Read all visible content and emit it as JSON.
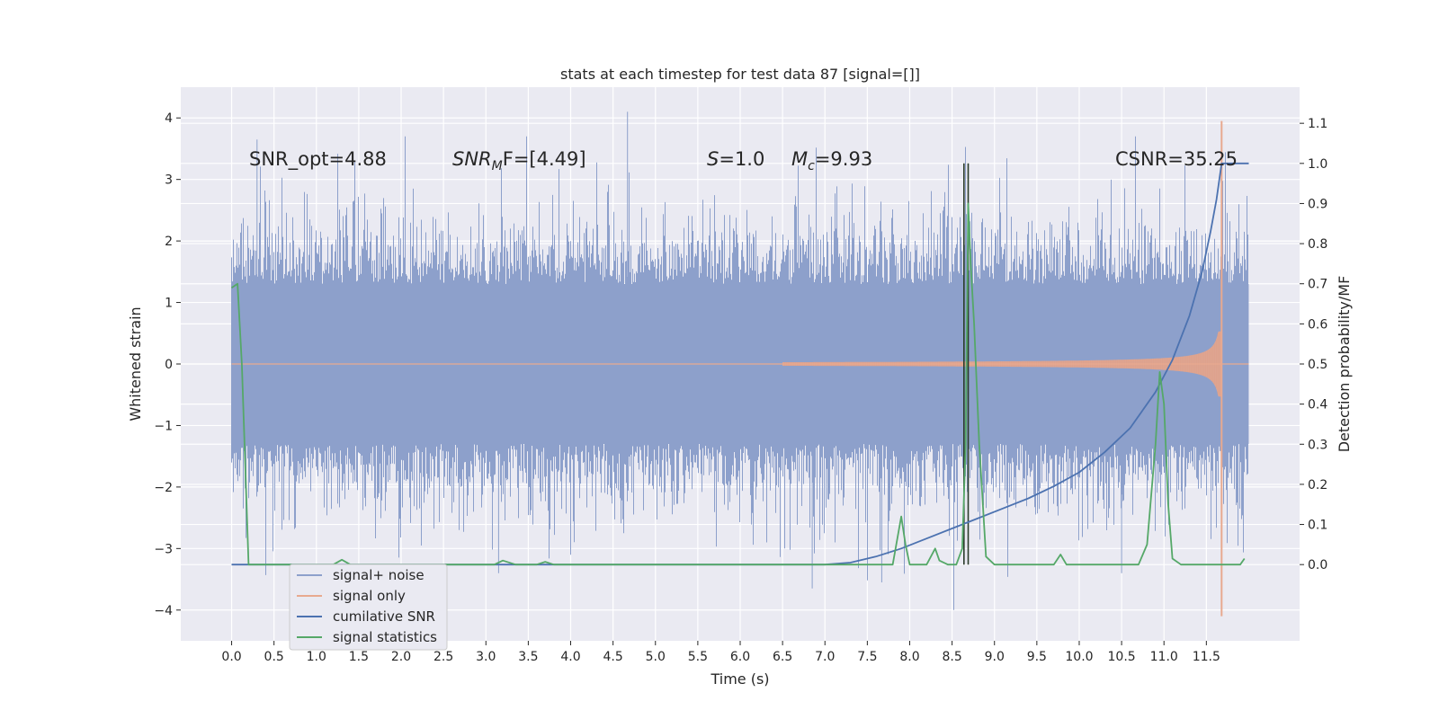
{
  "chart_data": {
    "type": "line",
    "title": "stats at each timestep for test data 87 [signal=[]]",
    "xlabel": "Time (s)",
    "ylabel_left": "Whitened strain",
    "ylabel_right": "Detection probability/MF",
    "xlim": [
      -0.6,
      12.6
    ],
    "ylim_left": [
      -4.5,
      4.5
    ],
    "ylim_right": [
      -0.19,
      1.19
    ],
    "x_ticks": [
      "0.0",
      "0.5",
      "1.0",
      "1.5",
      "2.0",
      "2.5",
      "3.0",
      "3.5",
      "4.0",
      "4.5",
      "5.0",
      "5.5",
      "6.0",
      "6.5",
      "7.0",
      "7.5",
      "8.0",
      "8.5",
      "9.0",
      "9.5",
      "10.0",
      "10.5",
      "11.0",
      "11.5"
    ],
    "y_ticks_left": [
      "4",
      "3",
      "2",
      "1",
      "0",
      "−1",
      "−2",
      "−3",
      "−4"
    ],
    "y_ticks_right": [
      "1.1",
      "1.0",
      "0.9",
      "0.8",
      "0.7",
      "0.6",
      "0.5",
      "0.4",
      "0.3",
      "0.2",
      "0.1",
      "0.0"
    ],
    "grid": true,
    "legend_position": "lower-left",
    "annotations": {
      "snr_opt": "SNR_opt=4.88",
      "snr_mf_prefix": "SNR",
      "snr_mf_sub": "M",
      "snr_mf_suffix": "F=[4.49]",
      "s_prefix": "S",
      "s_suffix": "=1.0",
      "mc_prefix": "M",
      "mc_sub": "c",
      "mc_suffix": "=9.93",
      "csnr": "CSNR=35.25"
    },
    "markers": [
      {
        "x": 8.64,
        "ymin": 0.0,
        "ymax": 1.0
      },
      {
        "x": 8.69,
        "ymin": 0.0,
        "ymax": 1.0
      }
    ],
    "series": [
      {
        "name": "signal+ noise",
        "axis": "left",
        "color": "#8da0cb",
        "envelope": {
          "t_start": 0.0,
          "t_end": 12.0,
          "typical_abs": 1.3,
          "typical_peak": 2.9,
          "max": 4.1,
          "min": -4.0
        }
      },
      {
        "name": "signal only",
        "axis": "left",
        "color": "#e8a98f",
        "chirp": {
          "t_start": 6.5,
          "t_merger": 11.68,
          "peak": 3.95,
          "trough": -4.1,
          "post_merger_end": 12.0
        }
      },
      {
        "name": "cumilative SNR",
        "axis": "right",
        "color": "#4c72b0",
        "x": [
          0.0,
          6.5,
          7.0,
          7.3,
          7.6,
          7.9,
          8.2,
          8.5,
          8.8,
          9.1,
          9.4,
          9.7,
          10.0,
          10.3,
          10.6,
          10.9,
          11.1,
          11.3,
          11.45,
          11.55,
          11.62,
          11.68,
          12.0
        ],
        "values": [
          0.0,
          0.0,
          0.0,
          0.005,
          0.02,
          0.04,
          0.065,
          0.09,
          0.115,
          0.14,
          0.165,
          0.195,
          0.23,
          0.28,
          0.34,
          0.43,
          0.51,
          0.62,
          0.73,
          0.83,
          0.91,
          1.0,
          1.0
        ]
      },
      {
        "name": "signal statistics",
        "axis": "right",
        "color": "#55a868",
        "x": [
          0.0,
          0.07,
          0.12,
          0.2,
          1.2,
          1.3,
          1.4,
          3.1,
          3.2,
          3.35,
          3.6,
          3.7,
          3.8,
          4.0,
          7.8,
          7.9,
          7.95,
          8.0,
          8.05,
          8.2,
          8.3,
          8.35,
          8.45,
          8.55,
          8.62,
          8.66,
          8.69,
          8.72,
          8.76,
          8.82,
          8.9,
          9.0,
          9.7,
          9.78,
          9.85,
          10.7,
          10.8,
          10.9,
          10.95,
          11.0,
          11.05,
          11.1,
          11.2,
          11.5,
          11.9,
          11.95
        ],
        "values": [
          0.69,
          0.7,
          0.5,
          0.0,
          0.0,
          0.012,
          0.0,
          0.0,
          0.01,
          0.0,
          0.0,
          0.007,
          0.0,
          0.0,
          0.0,
          0.12,
          0.05,
          0.0,
          0.0,
          0.0,
          0.04,
          0.01,
          0.0,
          0.0,
          0.04,
          0.3,
          0.9,
          0.75,
          0.6,
          0.3,
          0.02,
          0.0,
          0.0,
          0.025,
          0.0,
          0.0,
          0.05,
          0.3,
          0.48,
          0.4,
          0.15,
          0.015,
          0.0,
          0.0,
          0.0,
          0.015
        ]
      }
    ]
  }
}
